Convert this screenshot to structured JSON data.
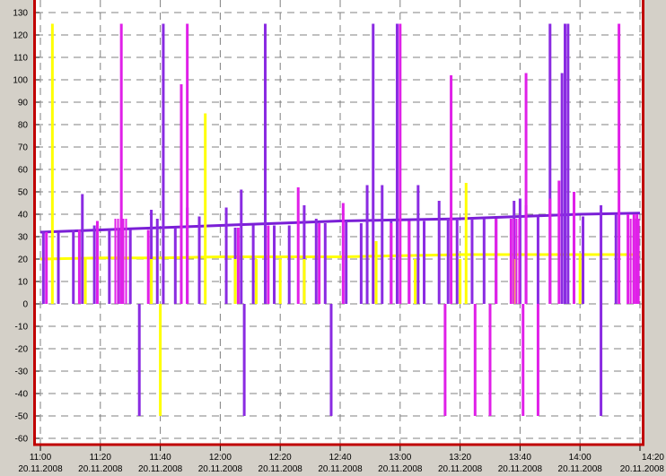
{
  "chart_data": {
    "type": "line",
    "title": "",
    "xlabel": "",
    "ylabel": "",
    "ylim": [
      -60,
      130
    ],
    "y_ticks": [
      -60,
      -50,
      -40,
      -30,
      -20,
      -10,
      0,
      10,
      20,
      30,
      40,
      50,
      60,
      70,
      80,
      90,
      100,
      110,
      120,
      130
    ],
    "x_ticks": [
      {
        "time": "11:00",
        "date": "20.11.2008"
      },
      {
        "time": "11:20",
        "date": "20.11.2008"
      },
      {
        "time": "11:40",
        "date": "20.11.2008"
      },
      {
        "time": "12:00",
        "date": "20.11.2008"
      },
      {
        "time": "12:20",
        "date": "20.11.2008"
      },
      {
        "time": "12:40",
        "date": "20.11.2008"
      },
      {
        "time": "13:00",
        "date": "20.11.2008"
      },
      {
        "time": "13:20",
        "date": "20.11.2008"
      },
      {
        "time": "13:40",
        "date": "20.11.2008"
      },
      {
        "time": "14:00",
        "date": "20.11.2008"
      },
      {
        "time": "14:20",
        "date": "20.11.2008"
      }
    ],
    "xlim": [
      "11:00",
      "14:20"
    ],
    "grid": true,
    "legend": "none",
    "colors": {
      "frame": "#c00000",
      "plot_background": "#ffffff",
      "grid": "#808080",
      "baseline_violet": "#7a1fd6",
      "spike_violet": "#8a2be2",
      "spike_magenta": "#e020e8",
      "yellow": "#ffff00"
    },
    "series": [
      {
        "color_key": "baseline_violet",
        "kind": "line",
        "points": [
          [
            "11:00",
            32
          ],
          [
            "11:20",
            33
          ],
          [
            "11:40",
            34
          ],
          [
            "12:00",
            35
          ],
          [
            "12:20",
            36
          ],
          [
            "12:40",
            37
          ],
          [
            "13:00",
            37.5
          ],
          [
            "13:20",
            38
          ],
          [
            "13:40",
            39
          ],
          [
            "14:00",
            40
          ],
          [
            "14:20",
            40.5
          ]
        ]
      },
      {
        "color_key": "yellow",
        "kind": "line",
        "points": [
          [
            "11:00",
            20
          ],
          [
            "11:20",
            20.5
          ],
          [
            "11:40",
            20.5
          ],
          [
            "12:00",
            21
          ],
          [
            "12:20",
            21
          ],
          [
            "12:40",
            21
          ],
          [
            "13:00",
            21.5
          ],
          [
            "13:20",
            22
          ],
          [
            "13:40",
            22
          ],
          [
            "14:00",
            22
          ],
          [
            "14:20",
            22
          ]
        ]
      },
      {
        "color_key": "spike_violet",
        "kind": "spikes",
        "points": [
          [
            "11:01",
            32,
            0
          ],
          [
            "11:06",
            32,
            0
          ],
          [
            "11:11",
            33,
            0
          ],
          [
            "11:14",
            49,
            0
          ],
          [
            "11:18",
            35,
            0
          ],
          [
            "11:23",
            33,
            0
          ],
          [
            "11:26",
            33,
            0
          ],
          [
            "11:30",
            33,
            0
          ],
          [
            "11:33",
            -50,
            0
          ],
          [
            "11:37",
            42,
            0
          ],
          [
            "11:39",
            38,
            0
          ],
          [
            "11:41",
            125,
            0
          ],
          [
            "11:45",
            34,
            0
          ],
          [
            "11:49",
            43,
            0
          ],
          [
            "11:53",
            39,
            0
          ],
          [
            "12:02",
            43,
            0
          ],
          [
            "12:05",
            34,
            0
          ],
          [
            "12:07",
            51,
            0
          ],
          [
            "12:08",
            -50,
            0
          ],
          [
            "12:11",
            35,
            0
          ],
          [
            "12:15",
            125,
            0
          ],
          [
            "12:18",
            35,
            0
          ],
          [
            "12:23",
            35,
            0
          ],
          [
            "12:28",
            44,
            0
          ],
          [
            "12:32",
            38,
            0
          ],
          [
            "12:35",
            36,
            0
          ],
          [
            "12:37",
            -50,
            0
          ],
          [
            "12:42",
            37,
            0
          ],
          [
            "12:47",
            36,
            0
          ],
          [
            "12:49",
            53,
            0
          ],
          [
            "12:51",
            125,
            0
          ],
          [
            "12:54",
            53,
            0
          ],
          [
            "12:57",
            37,
            0
          ],
          [
            "12:59",
            125,
            0
          ],
          [
            "13:03",
            37,
            0
          ],
          [
            "13:06",
            53,
            0
          ],
          [
            "13:08",
            37,
            0
          ],
          [
            "13:13",
            46,
            0
          ],
          [
            "13:16",
            38,
            0
          ],
          [
            "13:19",
            38,
            0
          ],
          [
            "13:24",
            38,
            0
          ],
          [
            "13:28",
            38,
            0
          ],
          [
            "13:32",
            38,
            0
          ],
          [
            "13:38",
            46,
            0
          ],
          [
            "13:40",
            47,
            0
          ],
          [
            "13:42",
            44,
            0
          ],
          [
            "13:46",
            39,
            0
          ],
          [
            "13:50",
            125,
            0
          ],
          [
            "13:54",
            103,
            0
          ],
          [
            "13:55",
            125,
            0
          ],
          [
            "13:56",
            125,
            0
          ],
          [
            "13:58",
            39,
            0
          ],
          [
            "14:01",
            39,
            0
          ],
          [
            "14:07",
            44,
            0
          ],
          [
            "14:07",
            -50,
            0
          ],
          [
            "14:12",
            40,
            0
          ]
        ]
      },
      {
        "color_key": "spike_magenta",
        "kind": "spikes",
        "points": [
          [
            "11:02",
            32,
            0
          ],
          [
            "11:13",
            33,
            0
          ],
          [
            "11:19",
            37,
            0
          ],
          [
            "11:27",
            125,
            0
          ],
          [
            "11:36",
            33,
            0
          ],
          [
            "11:47",
            98,
            0
          ],
          [
            "11:49",
            125,
            0
          ],
          [
            "12:06",
            34,
            0
          ],
          [
            "12:16",
            35,
            0
          ],
          [
            "12:26",
            52,
            0
          ],
          [
            "12:33",
            36,
            0
          ],
          [
            "12:41",
            45,
            0
          ],
          [
            "12:57",
            36,
            0
          ],
          [
            "13:00",
            125,
            0
          ],
          [
            "13:03",
            37,
            0
          ],
          [
            "13:15",
            -50,
            0
          ],
          [
            "13:17",
            102,
            0
          ],
          [
            "13:25",
            -50,
            0
          ],
          [
            "13:30",
            -50,
            0
          ],
          [
            "13:32",
            38,
            0
          ],
          [
            "13:37",
            38,
            0
          ],
          [
            "13:41",
            -50,
            0
          ],
          [
            "13:42",
            103,
            0
          ],
          [
            "13:46",
            -50,
            0
          ],
          [
            "13:50",
            47,
            0
          ],
          [
            "13:53",
            55,
            0
          ],
          [
            "13:58",
            50,
            0
          ],
          [
            "14:13",
            125,
            0
          ],
          [
            "14:16",
            40,
            0
          ],
          [
            "14:18",
            40,
            0
          ],
          [
            "14:19",
            40,
            0
          ]
        ]
      },
      {
        "color_key": "yellow",
        "kind": "spikes",
        "points": [
          [
            "11:04",
            125,
            0
          ],
          [
            "11:15",
            20,
            0
          ],
          [
            "11:37",
            20,
            0
          ],
          [
            "11:40",
            -50,
            0
          ],
          [
            "11:55",
            85,
            0
          ],
          [
            "12:05",
            20,
            0
          ],
          [
            "12:12",
            20,
            0
          ],
          [
            "12:20",
            20,
            0
          ],
          [
            "12:28",
            20,
            0
          ],
          [
            "12:52",
            28,
            0
          ],
          [
            "13:05",
            20,
            0
          ],
          [
            "13:20",
            20,
            0
          ],
          [
            "13:22",
            54,
            0
          ],
          [
            "13:38",
            20,
            0
          ],
          [
            "14:00",
            22,
            0
          ]
        ]
      }
    ]
  }
}
